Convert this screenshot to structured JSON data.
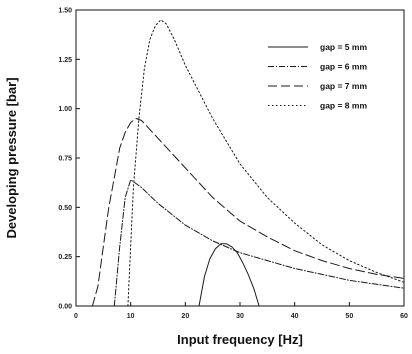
{
  "chart_data": {
    "type": "line",
    "xlabel": "Input frequency [Hz]",
    "ylabel": "Developing pressure [bar]",
    "xlim": [
      0,
      60
    ],
    "ylim": [
      0,
      1.5
    ],
    "xticks": [
      "0",
      "10",
      "20",
      "30",
      "40",
      "50",
      "60"
    ],
    "yticks": [
      "0.00",
      "0.25",
      "0.50",
      "0.75",
      "1.00",
      "1.25",
      "1.50"
    ],
    "grid": false,
    "legend_position": "top-right",
    "series": [
      {
        "name": "gap = 5 mm",
        "dash": "",
        "x": [
          22.5,
          23.5,
          24.5,
          25.5,
          26.5,
          27.5,
          28.5,
          29.5,
          30.5,
          31.5,
          32.5,
          33.5
        ],
        "y": [
          0.0,
          0.15,
          0.24,
          0.29,
          0.315,
          0.315,
          0.3,
          0.27,
          0.22,
          0.16,
          0.09,
          0.0
        ]
      },
      {
        "name": "gap = 6 mm",
        "dash": "6,2,1,2",
        "x": [
          7,
          8,
          9,
          10,
          12,
          15,
          20,
          25,
          30,
          35,
          40,
          45,
          50,
          55,
          60
        ],
        "y": [
          0.0,
          0.3,
          0.55,
          0.64,
          0.6,
          0.52,
          0.41,
          0.33,
          0.27,
          0.23,
          0.19,
          0.16,
          0.13,
          0.11,
          0.09
        ]
      },
      {
        "name": "gap = 7 mm",
        "dash": "9,4",
        "x": [
          3,
          4,
          5,
          6,
          7,
          8,
          9,
          10,
          11,
          12,
          15,
          20,
          25,
          30,
          35,
          40,
          45,
          50,
          55,
          60
        ],
        "y": [
          0.0,
          0.1,
          0.3,
          0.5,
          0.65,
          0.8,
          0.88,
          0.93,
          0.95,
          0.94,
          0.85,
          0.7,
          0.55,
          0.43,
          0.35,
          0.28,
          0.23,
          0.19,
          0.16,
          0.14
        ]
      },
      {
        "name": "gap = 8 mm",
        "dash": "1.5,2.5",
        "x": [
          9.5,
          10.5,
          11.5,
          12.5,
          13.5,
          14.5,
          15.5,
          16.5,
          18,
          20,
          25,
          30,
          35,
          40,
          45,
          50,
          55,
          60
        ],
        "y": [
          0.0,
          0.6,
          0.95,
          1.2,
          1.35,
          1.42,
          1.45,
          1.43,
          1.35,
          1.22,
          0.95,
          0.72,
          0.55,
          0.42,
          0.31,
          0.23,
          0.17,
          0.12
        ]
      }
    ]
  }
}
